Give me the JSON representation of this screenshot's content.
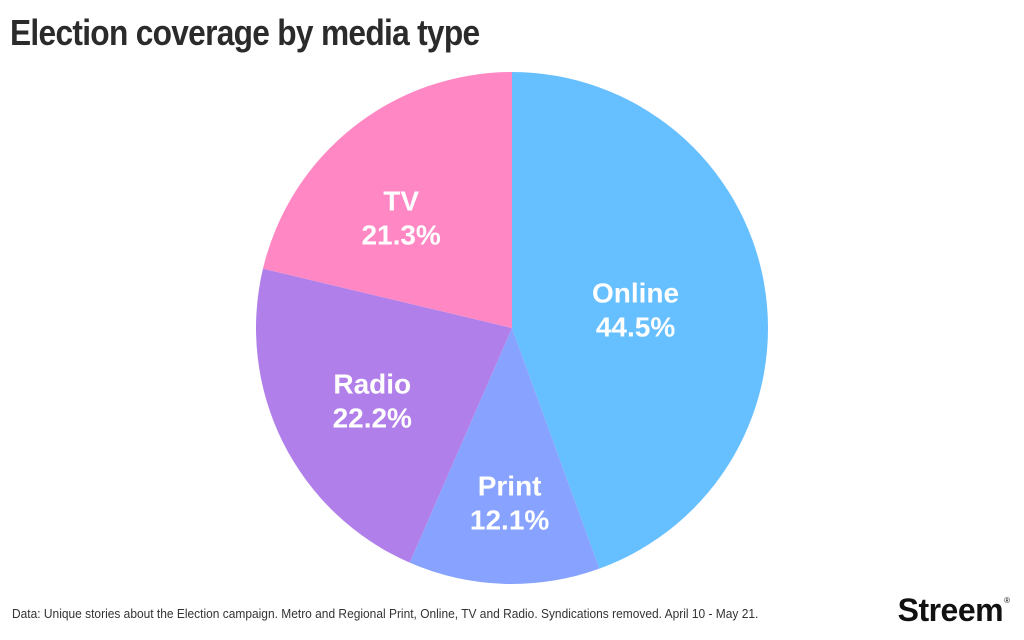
{
  "chart_data": {
    "type": "pie",
    "title": "Election coverage by media type",
    "categories": [
      "Online",
      "Print",
      "Radio",
      "TV"
    ],
    "values": [
      44.5,
      12.1,
      22.2,
      21.3
    ],
    "labels": [
      "44.5%",
      "12.1%",
      "22.2%",
      "21.3%"
    ],
    "colors": [
      "#66bfff",
      "#88a3ff",
      "#b17fe9",
      "#ff88c4"
    ],
    "start": "12 o'clock",
    "direction": "clockwise",
    "legend": "none (labels inside slices)"
  },
  "footnote": "Data: Unique stories about the Election campaign. Metro and Regional Print, Online, TV and Radio. Syndications removed. April 10 - May 21.",
  "brand": {
    "name": "Streem",
    "mark": "®"
  }
}
